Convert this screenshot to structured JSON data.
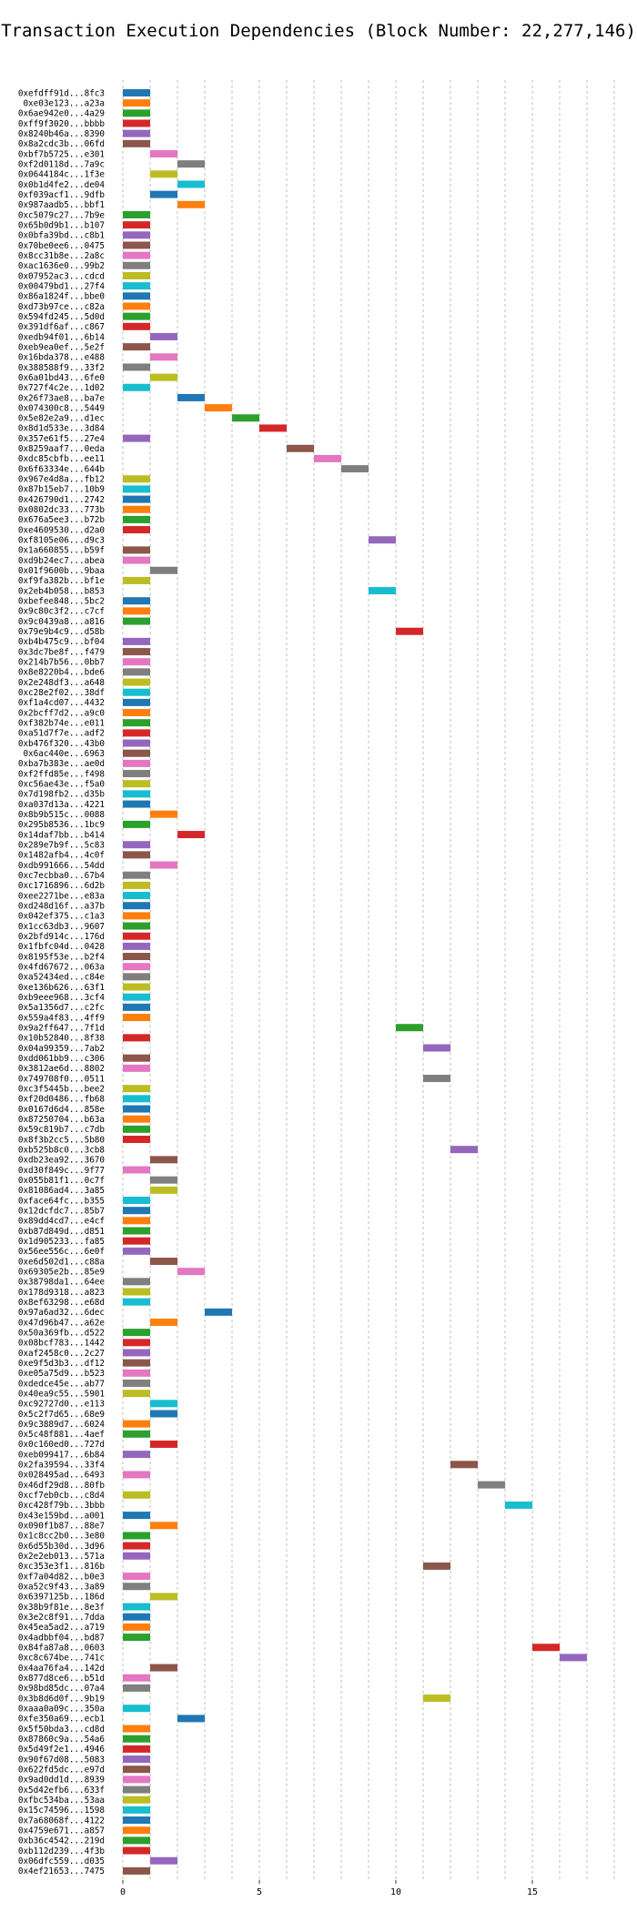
{
  "chart_data": {
    "type": "bar",
    "orientation": "horizontal",
    "title": "Transaction Execution Dependencies (Block Number: 22,277,146)",
    "xlabel": "",
    "ylabel": "",
    "xlim": [
      -0.5,
      18.5
    ],
    "xticks": [
      0,
      5,
      10,
      15
    ],
    "grid": "vertical dashed",
    "palette": [
      "#1f77b4",
      "#ff7f0e",
      "#2ca02c",
      "#d62728",
      "#9467bd",
      "#8c564b",
      "#e377c2",
      "#7f7f7f",
      "#bcbd22",
      "#17becf"
    ],
    "transactions": [
      {
        "label": "0xefdff91d...8fc3",
        "start": 0
      },
      {
        "label": "0xe03e123...a23a",
        "start": 0
      },
      {
        "label": "0x6ae942e0...4a29",
        "start": 0
      },
      {
        "label": "0xff9f3020...bbbb",
        "start": 0
      },
      {
        "label": "0x8240b46a...8390",
        "start": 0
      },
      {
        "label": "0x8a2cdc3b...06fd",
        "start": 0
      },
      {
        "label": "0xbf7b5725...e301",
        "start": 1
      },
      {
        "label": "0xf2d0118d...7a9c",
        "start": 2
      },
      {
        "label": "0x0644184c...1f3e",
        "start": 1
      },
      {
        "label": "0x0b1d4fe2...de04",
        "start": 2
      },
      {
        "label": "0xf039acf1...9dfb",
        "start": 1
      },
      {
        "label": "0x987aadb5...bbf1",
        "start": 2
      },
      {
        "label": "0xc5079c27...7b9e",
        "start": 0
      },
      {
        "label": "0x65b0d9b1...b107",
        "start": 0
      },
      {
        "label": "0x0bfa39bd...c8b1",
        "start": 0
      },
      {
        "label": "0x70be0ee6...0475",
        "start": 0
      },
      {
        "label": "0x8cc31b8e...2a8c",
        "start": 0
      },
      {
        "label": "0xac1636e0...99b2",
        "start": 0
      },
      {
        "label": "0x07952ac3...cdcd",
        "start": 0
      },
      {
        "label": "0x00479bd1...27f4",
        "start": 0
      },
      {
        "label": "0x86a1824f...bbe0",
        "start": 0
      },
      {
        "label": "0xd73b97ce...c82a",
        "start": 0
      },
      {
        "label": "0x594fd245...5d0d",
        "start": 0
      },
      {
        "label": "0x391df6af...c867",
        "start": 0
      },
      {
        "label": "0xedb94f01...6b14",
        "start": 1
      },
      {
        "label": "0xeb9ea0ef...5e2f",
        "start": 0
      },
      {
        "label": "0x16bda378...e488",
        "start": 1
      },
      {
        "label": "0x388588f9...33f2",
        "start": 0
      },
      {
        "label": "0x6a01bd43...6fe0",
        "start": 1
      },
      {
        "label": "0x727f4c2e...1d02",
        "start": 0
      },
      {
        "label": "0x26f73ae8...ba7e",
        "start": 2
      },
      {
        "label": "0x074300c8...5449",
        "start": 3
      },
      {
        "label": "0x5e82e2a9...d1ec",
        "start": 4
      },
      {
        "label": "0x8d1d533e...3d84",
        "start": 5
      },
      {
        "label": "0x357e61f5...27e4",
        "start": 0
      },
      {
        "label": "0x8259aaf7...0eda",
        "start": 6
      },
      {
        "label": "0xdc85cbfb...ee11",
        "start": 7
      },
      {
        "label": "0x6f63334e...644b",
        "start": 8
      },
      {
        "label": "0x967e4d8a...fb12",
        "start": 0
      },
      {
        "label": "0x87b15eb7...10b9",
        "start": 0
      },
      {
        "label": "0x426790d1...2742",
        "start": 0
      },
      {
        "label": "0x0802dc33...773b",
        "start": 0
      },
      {
        "label": "0x676a5ee3...b72b",
        "start": 0
      },
      {
        "label": "0xe4609530...d2a0",
        "start": 0
      },
      {
        "label": "0xf8105e06...d9c3",
        "start": 9
      },
      {
        "label": "0x1a660855...b59f",
        "start": 0
      },
      {
        "label": "0xd9b24ec7...abea",
        "start": 0
      },
      {
        "label": "0x01f9600b...9baa",
        "start": 1
      },
      {
        "label": "0xf9fa382b...bf1e",
        "start": 0
      },
      {
        "label": "0x2eb4b058...b853",
        "start": 9
      },
      {
        "label": "0xbefee848...5bc2",
        "start": 0
      },
      {
        "label": "0x9c80c3f2...c7cf",
        "start": 0
      },
      {
        "label": "0x9c0439a8...a816",
        "start": 0
      },
      {
        "label": "0x79e9b4c9...d58b",
        "start": 10
      },
      {
        "label": "0xb4b475c9...bf04",
        "start": 0
      },
      {
        "label": "0x3dc7be8f...f479",
        "start": 0
      },
      {
        "label": "0x214b7b56...0bb7",
        "start": 0
      },
      {
        "label": "0x8e8220b4...bde6",
        "start": 0
      },
      {
        "label": "0x2e248df3...a648",
        "start": 0
      },
      {
        "label": "0xc28e2f02...38df",
        "start": 0
      },
      {
        "label": "0xf1a4cd07...4432",
        "start": 0
      },
      {
        "label": "0x2bcff7d2...a9c0",
        "start": 0
      },
      {
        "label": "0xf382b74e...e011",
        "start": 0
      },
      {
        "label": "0xa51d7f7e...adf2",
        "start": 0
      },
      {
        "label": "0xb476f320...43b0",
        "start": 0
      },
      {
        "label": "0x6ac440e...6963",
        "start": 0
      },
      {
        "label": "0xba7b383e...ae0d",
        "start": 0
      },
      {
        "label": "0xf2ffd85e...f498",
        "start": 0
      },
      {
        "label": "0xc56ae43e...f5a0",
        "start": 0
      },
      {
        "label": "0x7d198fb2...d35b",
        "start": 0
      },
      {
        "label": "0xa037d13a...4221",
        "start": 0
      },
      {
        "label": "0x8b9b515c...0088",
        "start": 1
      },
      {
        "label": "0x295b8536...1bc9",
        "start": 0
      },
      {
        "label": "0x14daf7bb...b414",
        "start": 2
      },
      {
        "label": "0x289e7b9f...5c83",
        "start": 0
      },
      {
        "label": "0x1482afb4...4c0f",
        "start": 0
      },
      {
        "label": "0xdb991666...54dd",
        "start": 1
      },
      {
        "label": "0xc7ecbba0...67b4",
        "start": 0
      },
      {
        "label": "0xc1716896...6d2b",
        "start": 0
      },
      {
        "label": "0xee2271be...e83a",
        "start": 0
      },
      {
        "label": "0xd248d16f...a37b",
        "start": 0
      },
      {
        "label": "0x042ef375...c1a3",
        "start": 0
      },
      {
        "label": "0x1cc63db3...9607",
        "start": 0
      },
      {
        "label": "0x2bfd914c...176d",
        "start": 0
      },
      {
        "label": "0x1fbfc04d...0428",
        "start": 0
      },
      {
        "label": "0x8195f53e...b2f4",
        "start": 0
      },
      {
        "label": "0x4fd67672...063a",
        "start": 0
      },
      {
        "label": "0xa52434ed...c84e",
        "start": 0
      },
      {
        "label": "0xe136b626...63f1",
        "start": 0
      },
      {
        "label": "0xb9eee968...3cf4",
        "start": 0
      },
      {
        "label": "0x5a1356d7...c2fc",
        "start": 0
      },
      {
        "label": "0x559a4f83...4ff9",
        "start": 0
      },
      {
        "label": "0x9a2ff647...7f1d",
        "start": 10
      },
      {
        "label": "0x10b52840...8f38",
        "start": 0
      },
      {
        "label": "0x04a99359...7ab2",
        "start": 11
      },
      {
        "label": "0xdd061bb9...c306",
        "start": 0
      },
      {
        "label": "0x3812ae6d...8802",
        "start": 0
      },
      {
        "label": "0x749708f0...0511",
        "start": 11
      },
      {
        "label": "0xc3f5445b...bee2",
        "start": 0
      },
      {
        "label": "0xf20d0486...fb68",
        "start": 0
      },
      {
        "label": "0x0167d6d4...858e",
        "start": 0
      },
      {
        "label": "0x87250704...b63a",
        "start": 0
      },
      {
        "label": "0x59c819b7...c7db",
        "start": 0
      },
      {
        "label": "0x8f3b2cc5...5b80",
        "start": 0
      },
      {
        "label": "0xb525b8c0...3cb8",
        "start": 12
      },
      {
        "label": "0xdb23ea92...3670",
        "start": 1
      },
      {
        "label": "0xd30f849c...9f77",
        "start": 0
      },
      {
        "label": "0x055b81f1...0c7f",
        "start": 1
      },
      {
        "label": "0x81086ad4...3a85",
        "start": 1
      },
      {
        "label": "0xface64fc...b355",
        "start": 0
      },
      {
        "label": "0x12dcfdc7...85b7",
        "start": 0
      },
      {
        "label": "0x89dd4cd7...e4cf",
        "start": 0
      },
      {
        "label": "0xb87d849d...d851",
        "start": 0
      },
      {
        "label": "0x1d905233...fa85",
        "start": 0
      },
      {
        "label": "0x56ee556c...6e0f",
        "start": 0
      },
      {
        "label": "0xe6d502d1...c88a",
        "start": 1
      },
      {
        "label": "0x69305e2b...85e9",
        "start": 2
      },
      {
        "label": "0x38798da1...64ee",
        "start": 0
      },
      {
        "label": "0x178d9318...a823",
        "start": 0
      },
      {
        "label": "0x8ef63298...e68d",
        "start": 0
      },
      {
        "label": "0x97a6ad32...6dec",
        "start": 3
      },
      {
        "label": "0x47d96b47...a62e",
        "start": 1
      },
      {
        "label": "0x50a369fb...d522",
        "start": 0
      },
      {
        "label": "0x08bcf783...1442",
        "start": 0
      },
      {
        "label": "0xaf2458c0...2c27",
        "start": 0
      },
      {
        "label": "0xe9f5d3b3...df12",
        "start": 0
      },
      {
        "label": "0xe05a75d9...b523",
        "start": 0
      },
      {
        "label": "0xdedce45e...ab77",
        "start": 0
      },
      {
        "label": "0x40ea9c55...5901",
        "start": 0
      },
      {
        "label": "0xc92727d0...e113",
        "start": 1
      },
      {
        "label": "0x5c2f7d65...68e9",
        "start": 1
      },
      {
        "label": "0x9c3889d7...6024",
        "start": 0
      },
      {
        "label": "0x5c48f881...4aef",
        "start": 0
      },
      {
        "label": "0x0c160ed0...727d",
        "start": 1
      },
      {
        "label": "0xeb099417...6b84",
        "start": 0
      },
      {
        "label": "0x2fa39594...33f4",
        "start": 12
      },
      {
        "label": "0x028495ad...6493",
        "start": 0
      },
      {
        "label": "0x46df29d8...80fb",
        "start": 13
      },
      {
        "label": "0xcf7eb0cb...c8d4",
        "start": 0
      },
      {
        "label": "0xc428f79b...3bbb",
        "start": 14
      },
      {
        "label": "0x43e159bd...a001",
        "start": 0
      },
      {
        "label": "0x090f1b87...88e7",
        "start": 1
      },
      {
        "label": "0x1c8cc2b0...3e80",
        "start": 0
      },
      {
        "label": "0x6d55b30d...3d96",
        "start": 0
      },
      {
        "label": "0x2e2eb013...571a",
        "start": 0
      },
      {
        "label": "0xc353e3f1...816b",
        "start": 11
      },
      {
        "label": "0xf7a04d82...b0e3",
        "start": 0
      },
      {
        "label": "0xa52c9f43...3a89",
        "start": 0
      },
      {
        "label": "0x6397125b...186d",
        "start": 1
      },
      {
        "label": "0x38b9f81e...8e3f",
        "start": 0
      },
      {
        "label": "0x3e2c8f91...7dda",
        "start": 0
      },
      {
        "label": "0x45ea5ad2...a719",
        "start": 0
      },
      {
        "label": "0x4adbbf04...bd87",
        "start": 0
      },
      {
        "label": "0x84fa87a8...0603",
        "start": 15
      },
      {
        "label": "0xc8c674be...741c",
        "start": 16
      },
      {
        "label": "0x4aa76fa4...142d",
        "start": 1
      },
      {
        "label": "0x877d8ce6...b51d",
        "start": 0
      },
      {
        "label": "0x98bd85dc...07a4",
        "start": 0
      },
      {
        "label": "0x3b8d6d0f...9b19",
        "start": 11
      },
      {
        "label": "0xaaa0a09c...350a",
        "start": 0
      },
      {
        "label": "0xfe350a69...ecb1",
        "start": 2
      },
      {
        "label": "0x5f50bda3...cd8d",
        "start": 0
      },
      {
        "label": "0x87860c9a...54a6",
        "start": 0
      },
      {
        "label": "0x5d49f2e1...4946",
        "start": 0
      },
      {
        "label": "0x90f67d08...5083",
        "start": 0
      },
      {
        "label": "0x622fd5dc...e97d",
        "start": 0
      },
      {
        "label": "0x9ad0dd1d...8939",
        "start": 0
      },
      {
        "label": "0x5d42efb6...633f",
        "start": 0
      },
      {
        "label": "0xfbc534ba...53aa",
        "start": 0
      },
      {
        "label": "0x15c74596...1598",
        "start": 0
      },
      {
        "label": "0x7a68068f...4122",
        "start": 0
      },
      {
        "label": "0x4759e671...a857",
        "start": 0
      },
      {
        "label": "0xb36c4542...219d",
        "start": 0
      },
      {
        "label": "0xb112d239...4f3b",
        "start": 0
      },
      {
        "label": "0x06dfc559...d035",
        "start": 1
      },
      {
        "label": "0x4ef21653...7475",
        "start": 0
      }
    ]
  }
}
